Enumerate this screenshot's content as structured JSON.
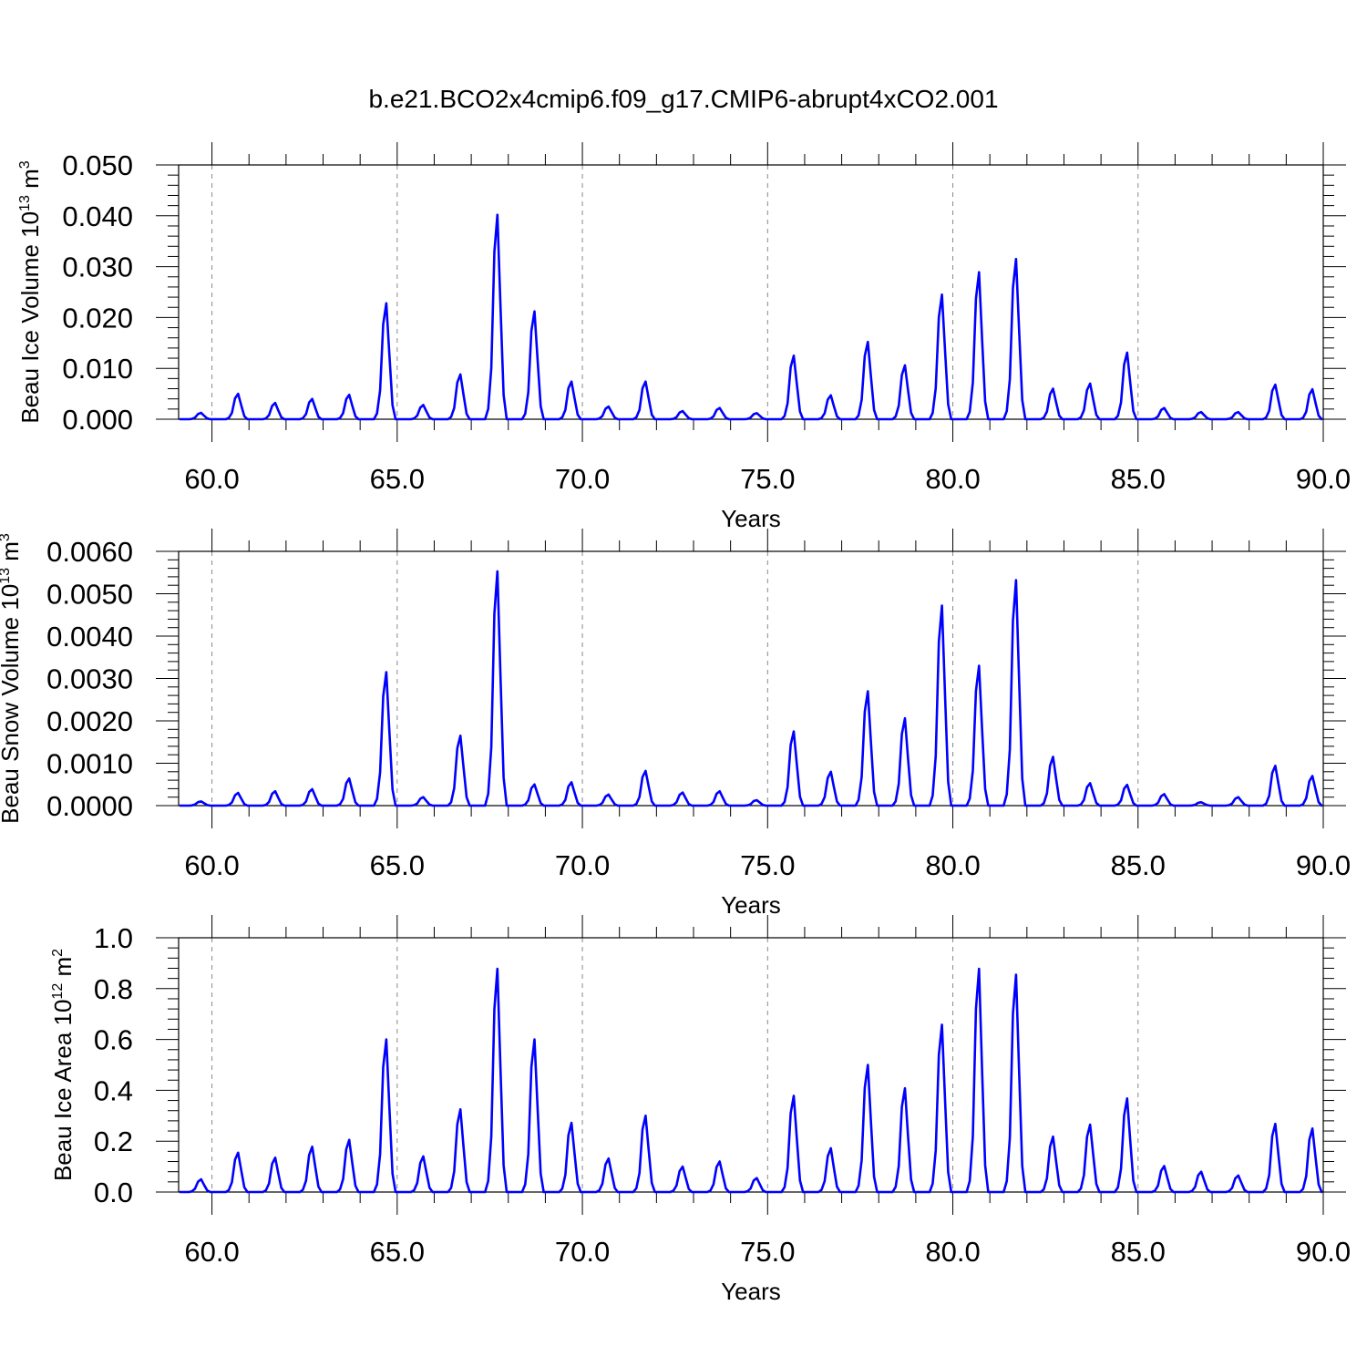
{
  "title": "b.e21.BCO2x4cmip6.f09_g17.CMIP6-abrupt4xCO2.001",
  "chart_data": [
    {
      "type": "line",
      "title": "b.e21.BCO2x4cmip6.f09_g17.CMIP6-abrupt4xCO2.001",
      "xlabel": "Years",
      "ylabel_text": "Beau Ice Volume 10",
      "ylabel_exp": "13",
      "ylabel_unit": " m",
      "ylabel_unit_exp": "3",
      "xlim": [
        59.1,
        90.0
      ],
      "ylim": [
        0.0,
        0.05
      ],
      "xticks": [
        60,
        65,
        70,
        75,
        80,
        85,
        90
      ],
      "xtick_labels": [
        "60.0",
        "65.0",
        "70.0",
        "75.0",
        "80.0",
        "85.0",
        "90.0"
      ],
      "yticks": [
        0.0,
        0.01,
        0.02,
        0.03,
        0.04,
        0.05
      ],
      "ytick_labels": [
        "0.000",
        "0.010",
        "0.020",
        "0.030",
        "0.040",
        "0.050"
      ],
      "grid": "vertical-dashed",
      "color": "#0000ff",
      "peaks": [
        [
          59.0,
          0.00125
        ],
        [
          60.0,
          0.005
        ],
        [
          61.0,
          0.0032
        ],
        [
          62.0,
          0.004
        ],
        [
          63.0,
          0.0048
        ],
        [
          64.0,
          0.0228
        ],
        [
          65.0,
          0.0028
        ],
        [
          66.0,
          0.0088
        ],
        [
          67.0,
          0.0402
        ],
        [
          68.0,
          0.0212
        ],
        [
          69.0,
          0.0074
        ],
        [
          70.0,
          0.0025
        ],
        [
          71.0,
          0.0074
        ],
        [
          72.0,
          0.0016
        ],
        [
          73.0,
          0.0022
        ],
        [
          74.0,
          0.0012
        ],
        [
          75.0,
          0.0125
        ],
        [
          76.0,
          0.0047
        ],
        [
          77.0,
          0.0152
        ],
        [
          78.0,
          0.0106
        ],
        [
          79.0,
          0.0245
        ],
        [
          80.0,
          0.0289
        ],
        [
          81.0,
          0.0315
        ],
        [
          82.0,
          0.006
        ],
        [
          83.0,
          0.007
        ],
        [
          84.0,
          0.0131
        ],
        [
          85.0,
          0.0022
        ],
        [
          86.0,
          0.0014
        ],
        [
          87.0,
          0.0014
        ],
        [
          88.0,
          0.0068
        ],
        [
          89.0,
          0.0059
        ]
      ]
    },
    {
      "type": "line",
      "title": "",
      "xlabel": "Years",
      "ylabel_text": "Beau Snow Volume 10",
      "ylabel_exp": "13",
      "ylabel_unit": " m",
      "ylabel_unit_exp": "3",
      "xlim": [
        59.1,
        90.0
      ],
      "ylim": [
        0.0,
        0.006
      ],
      "xticks": [
        60,
        65,
        70,
        75,
        80,
        85,
        90
      ],
      "xtick_labels": [
        "60.0",
        "65.0",
        "70.0",
        "75.0",
        "80.0",
        "85.0",
        "90.0"
      ],
      "yticks": [
        0.0,
        0.001,
        0.002,
        0.003,
        0.004,
        0.005,
        0.006
      ],
      "ytick_labels": [
        "0.0000",
        "0.0010",
        "0.0020",
        "0.0030",
        "0.0040",
        "0.0050",
        "0.0060"
      ],
      "grid": "vertical-dashed",
      "color": "#0000ff",
      "peaks": [
        [
          59.0,
          0.0001
        ],
        [
          60.0,
          0.0003
        ],
        [
          61.0,
          0.00034
        ],
        [
          62.0,
          0.00039
        ],
        [
          63.0,
          0.00064
        ],
        [
          64.0,
          0.00315
        ],
        [
          65.0,
          0.0002
        ],
        [
          66.0,
          0.00165
        ],
        [
          67.0,
          0.00553
        ],
        [
          68.0,
          0.0005
        ],
        [
          69.0,
          0.00055
        ],
        [
          70.0,
          0.00026
        ],
        [
          71.0,
          0.00082
        ],
        [
          72.0,
          0.00031
        ],
        [
          73.0,
          0.00034
        ],
        [
          74.0,
          0.00013
        ],
        [
          75.0,
          0.00175
        ],
        [
          76.0,
          0.0008
        ],
        [
          77.0,
          0.0027
        ],
        [
          78.0,
          0.00206
        ],
        [
          79.0,
          0.00472
        ],
        [
          80.0,
          0.0033
        ],
        [
          81.0,
          0.00532
        ],
        [
          82.0,
          0.00115
        ],
        [
          83.0,
          0.00053
        ],
        [
          84.0,
          0.00049
        ],
        [
          85.0,
          0.00027
        ],
        [
          86.0,
          8e-05
        ],
        [
          87.0,
          0.0002
        ],
        [
          88.0,
          0.00094
        ],
        [
          89.0,
          0.0007
        ]
      ]
    },
    {
      "type": "line",
      "title": "",
      "xlabel": "Years",
      "ylabel_text": "Beau Ice Area 10",
      "ylabel_exp": "12",
      "ylabel_unit": " m",
      "ylabel_unit_exp": "2",
      "xlim": [
        59.1,
        90.0
      ],
      "ylim": [
        0.0,
        1.0
      ],
      "xticks": [
        60,
        65,
        70,
        75,
        80,
        85,
        90
      ],
      "xtick_labels": [
        "60.0",
        "65.0",
        "70.0",
        "75.0",
        "80.0",
        "85.0",
        "90.0"
      ],
      "yticks": [
        0.0,
        0.2,
        0.4,
        0.6,
        0.8,
        1.0
      ],
      "ytick_labels": [
        "0.0",
        "0.2",
        "0.4",
        "0.6",
        "0.8",
        "1.0"
      ],
      "grid": "vertical-dashed",
      "color": "#0000ff",
      "peaks": [
        [
          59.0,
          0.05
        ],
        [
          60.0,
          0.155
        ],
        [
          61.0,
          0.135
        ],
        [
          62.0,
          0.178
        ],
        [
          63.0,
          0.205
        ],
        [
          64.0,
          0.6
        ],
        [
          65.0,
          0.14
        ],
        [
          66.0,
          0.325
        ],
        [
          67.0,
          0.878
        ],
        [
          68.0,
          0.6
        ],
        [
          69.0,
          0.272
        ],
        [
          70.0,
          0.132
        ],
        [
          71.0,
          0.3
        ],
        [
          72.0,
          0.1
        ],
        [
          73.0,
          0.12
        ],
        [
          74.0,
          0.055
        ],
        [
          75.0,
          0.378
        ],
        [
          76.0,
          0.172
        ],
        [
          77.0,
          0.5
        ],
        [
          78.0,
          0.408
        ],
        [
          79.0,
          0.658
        ],
        [
          80.0,
          0.878
        ],
        [
          81.0,
          0.855
        ],
        [
          82.0,
          0.218
        ],
        [
          83.0,
          0.265
        ],
        [
          84.0,
          0.368
        ],
        [
          85.0,
          0.102
        ],
        [
          86.0,
          0.08
        ],
        [
          87.0,
          0.065
        ],
        [
          88.0,
          0.268
        ],
        [
          89.0,
          0.25
        ]
      ]
    }
  ]
}
